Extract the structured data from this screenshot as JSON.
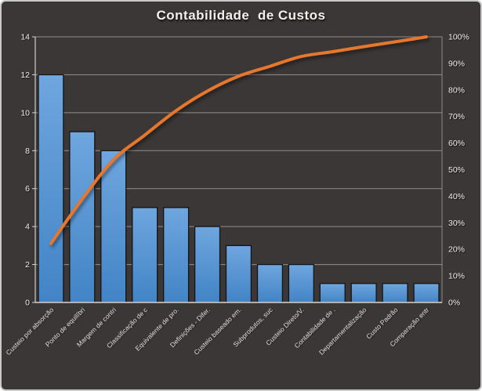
{
  "colors": {
    "background": "#3a3736",
    "frame_border": "#c9c9c9",
    "title_text": "#f2efed",
    "axis_text": "#efecea",
    "category_text": "#e9e6e4",
    "grid_line": "#a8a5a3",
    "plot_border": "#8f8c8a",
    "axis_line": "#d9d6d4",
    "bar_fill_top": "#6fa6de",
    "bar_fill_bottom": "#4284c6",
    "bar_border": "#141414",
    "cumulative_line": "#e8772e"
  },
  "chart_data": {
    "type": "bar",
    "subtype": "pareto",
    "title": "Contabilidade  de Custos",
    "grid": true,
    "legend": "none",
    "categories": [
      "Custeio por absorção",
      "Ponto de equilíbri",
      "Margem de contri",
      "Classificação de c",
      "Equivalente de pro.",
      "Definições - Difer.",
      "Custeio baseado em.",
      "Subprodutos, suc",
      "Custeio Direto/V.",
      "Contabilidade de .",
      "Departamentalização",
      "Custo Padrão",
      "Comparação entr"
    ],
    "series": [
      {
        "name": "bars",
        "role": "bar",
        "axis": "left",
        "values": [
          12,
          9,
          8,
          5,
          5,
          4,
          3,
          2,
          2,
          1,
          1,
          1,
          1
        ]
      },
      {
        "name": "cumulative-percent-line",
        "role": "line",
        "axis": "right",
        "values": [
          22.2,
          38.9,
          53.7,
          63.0,
          72.2,
          79.6,
          85.2,
          88.9,
          92.6,
          94.4,
          96.3,
          98.1,
          100.0
        ]
      }
    ],
    "left_axis": {
      "min": 0,
      "max": 14,
      "step": 2,
      "ticks": [
        "0",
        "2",
        "4",
        "6",
        "8",
        "10",
        "12",
        "14"
      ]
    },
    "right_axis": {
      "min": 0,
      "max": 100,
      "step": 10,
      "ticks": [
        "0%",
        "10%",
        "20%",
        "30%",
        "40%",
        "50%",
        "60%",
        "70%",
        "80%",
        "90%",
        "100%"
      ]
    }
  }
}
